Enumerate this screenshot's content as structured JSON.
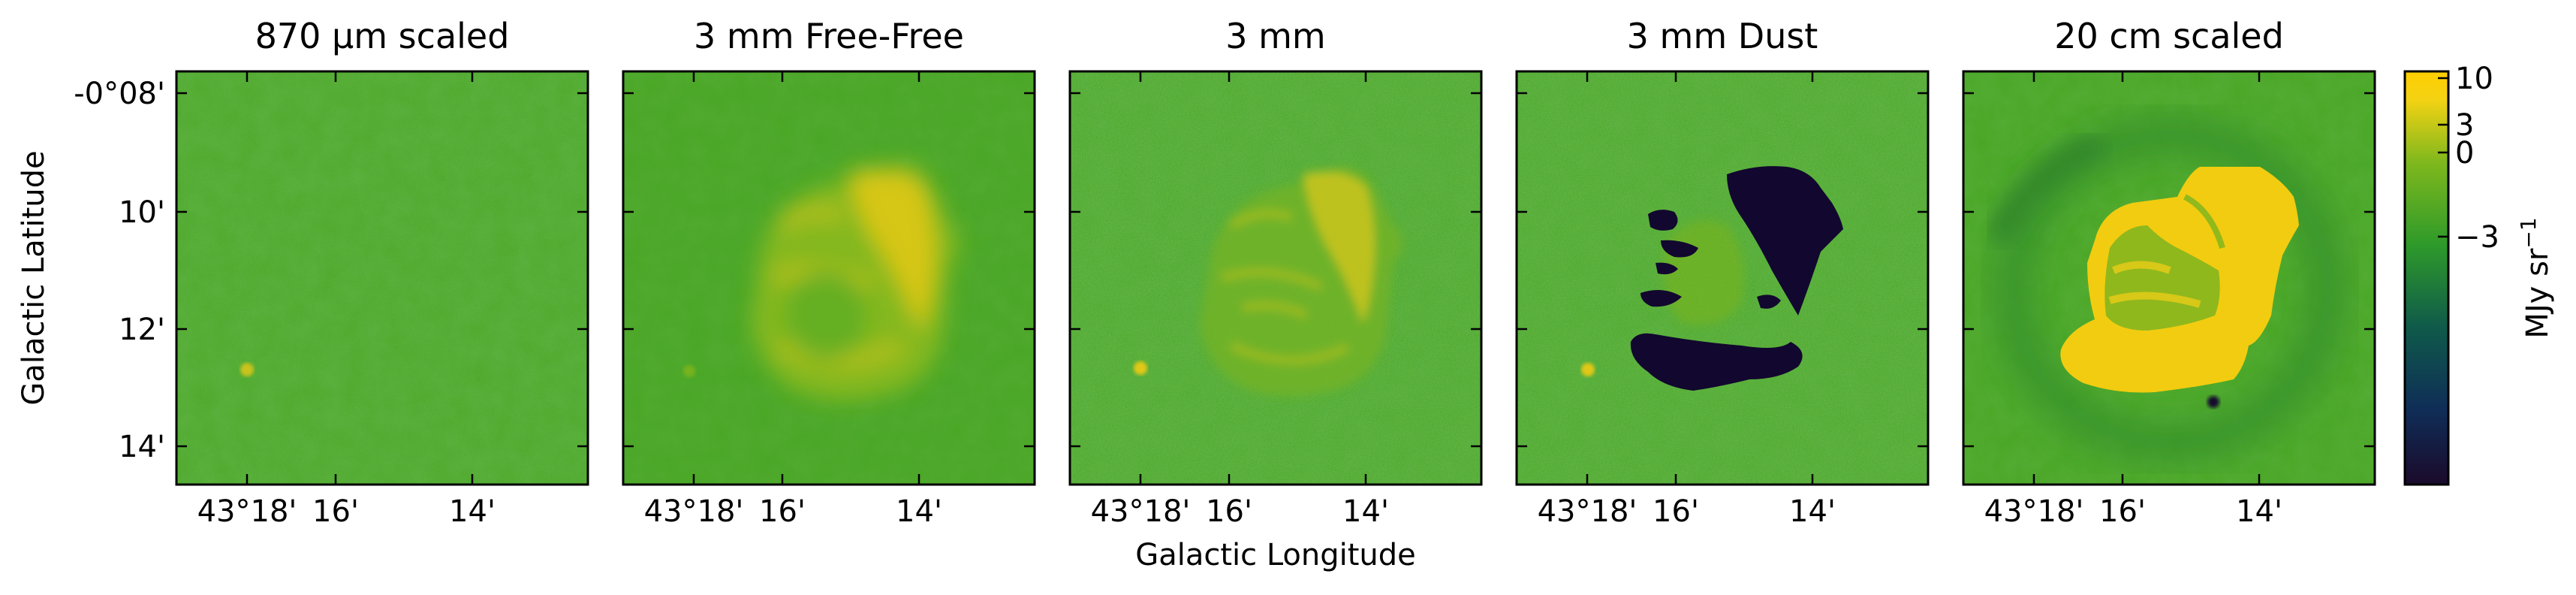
{
  "figure": {
    "panels": [
      {
        "title": "870 μm scaled",
        "variant": "submm"
      },
      {
        "title": "3 mm Free-Free",
        "variant": "freefree"
      },
      {
        "title": "3 mm",
        "variant": "total"
      },
      {
        "title": "3 mm Dust",
        "variant": "dust"
      },
      {
        "title": "20 cm scaled",
        "variant": "radio"
      }
    ],
    "ylabel": "Galactic Latitude",
    "xlabel": "Galactic Longitude",
    "ytick_labels": [
      "-0°08'",
      "10'",
      "12'",
      "14'"
    ],
    "xtick_labels": [
      "43°18'",
      "16'",
      "14'"
    ],
    "colorbar": {
      "label": "MJy sr",
      "label_superscript": "−1",
      "tick_labels": [
        "10",
        "3",
        "0",
        "−3"
      ],
      "colormap": "viridis-like",
      "colors": [
        "#1b0a2a",
        "#0f2d57",
        "#0f5a4a",
        "#2e9a2a",
        "#7fb81d",
        "#f3d214",
        "#ffce00"
      ]
    },
    "colors": {
      "background_green": "#49a624",
      "bright_yellow": "#f2cc10",
      "dark_navy": "#12072e"
    }
  }
}
